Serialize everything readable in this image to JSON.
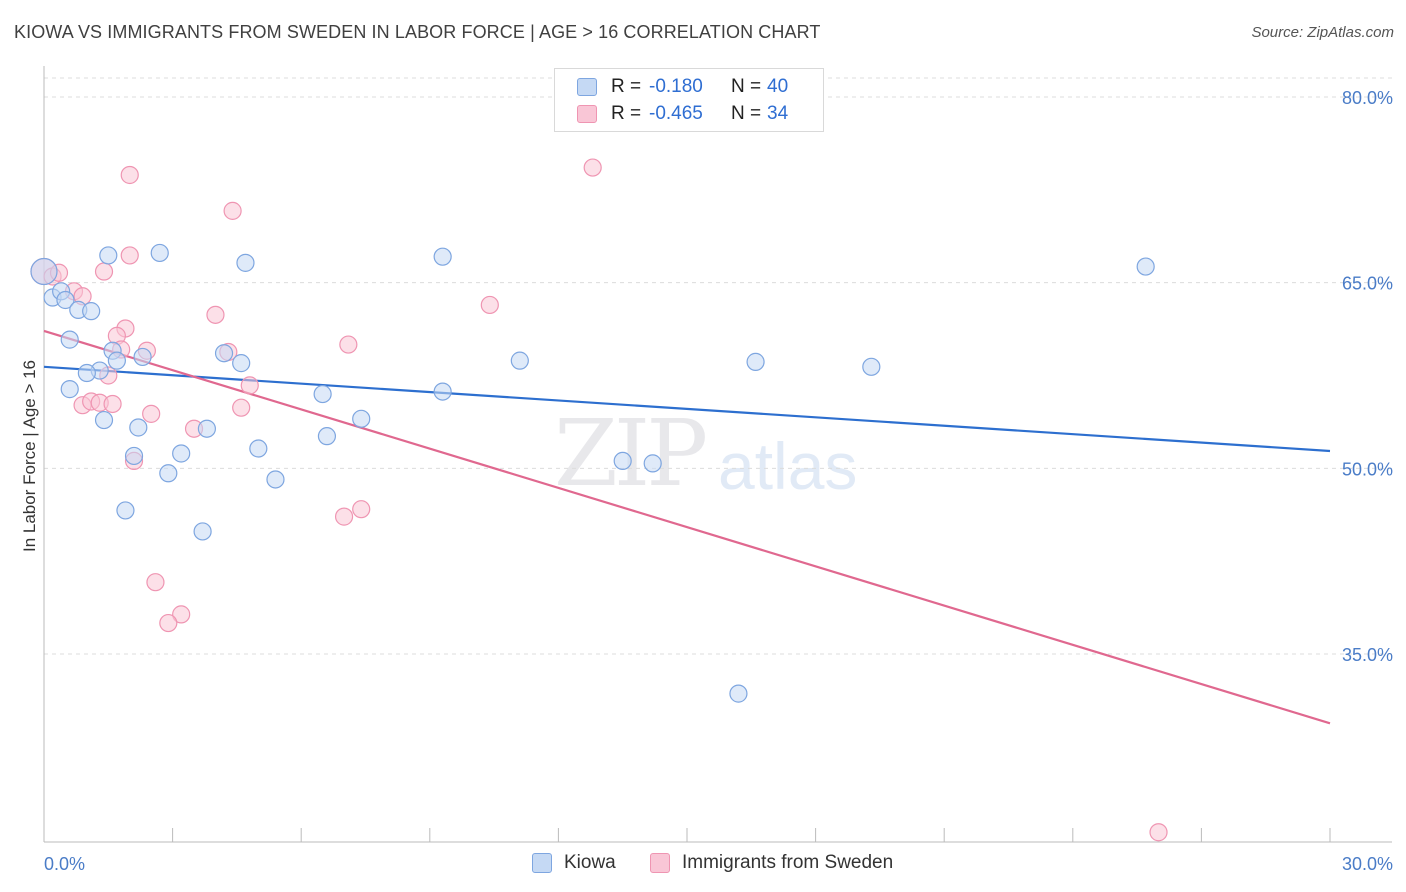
{
  "title": "KIOWA VS IMMIGRANTS FROM SWEDEN IN LABOR FORCE | AGE > 16 CORRELATION CHART",
  "source": "Source: ZipAtlas.com",
  "watermark": {
    "zip": "ZIP",
    "atlas": "atlas"
  },
  "legend": {
    "rows": [
      {
        "r_label": "R =",
        "r_value": "-0.180",
        "n_label": "N =",
        "n_value": "40"
      },
      {
        "r_label": "R =",
        "r_value": "-0.465",
        "n_label": "N =",
        "n_value": "34"
      }
    ]
  },
  "bottom_legend": {
    "kiowa": "Kiowa",
    "sweden": "Immigrants from Sweden"
  },
  "colors": {
    "kiowa_fill": "#c5d9f4",
    "kiowa_stroke": "#7ea6e0",
    "kiowa_line": "#2d6fcf",
    "sweden_fill": "#f9c6d6",
    "sweden_stroke": "#ef95b2",
    "sweden_line": "#e0688f",
    "tick_text": "#4a7cc7"
  },
  "chart_data": {
    "type": "scatter",
    "title": "KIOWA VS IMMIGRANTS FROM SWEDEN IN LABOR FORCE | AGE > 16 CORRELATION CHART",
    "xlabel": "",
    "ylabel": "In Labor Force | Age > 16",
    "xlim": [
      0,
      30
    ],
    "ylim": [
      20,
      83
    ],
    "x_tick_labels": [
      "0.0%",
      "30.0%"
    ],
    "y_ticks": [
      35,
      50,
      65,
      80
    ],
    "y_tick_labels": [
      "35.0%",
      "50.0%",
      "65.0%",
      "80.0%"
    ],
    "grid": true,
    "series": [
      {
        "name": "Kiowa",
        "points": [
          [
            0.0,
            65.9
          ],
          [
            0.2,
            63.8
          ],
          [
            0.4,
            64.3
          ],
          [
            0.5,
            63.6
          ],
          [
            0.8,
            62.8
          ],
          [
            1.1,
            62.7
          ],
          [
            0.6,
            60.4
          ],
          [
            1.5,
            67.2
          ],
          [
            2.7,
            67.4
          ],
          [
            4.7,
            66.6
          ],
          [
            9.3,
            67.1
          ],
          [
            25.7,
            66.3
          ],
          [
            1.6,
            59.5
          ],
          [
            1.7,
            58.7
          ],
          [
            2.3,
            59.0
          ],
          [
            4.2,
            59.3
          ],
          [
            4.6,
            58.5
          ],
          [
            11.1,
            58.7
          ],
          [
            16.6,
            58.6
          ],
          [
            19.3,
            58.2
          ],
          [
            1.3,
            57.9
          ],
          [
            1.0,
            57.7
          ],
          [
            0.6,
            56.4
          ],
          [
            6.5,
            56.0
          ],
          [
            9.3,
            56.2
          ],
          [
            1.4,
            53.9
          ],
          [
            2.2,
            53.3
          ],
          [
            3.8,
            53.2
          ],
          [
            7.4,
            54.0
          ],
          [
            6.6,
            52.6
          ],
          [
            2.1,
            51.0
          ],
          [
            3.2,
            51.2
          ],
          [
            5.0,
            51.6
          ],
          [
            2.9,
            49.6
          ],
          [
            5.4,
            49.1
          ],
          [
            13.5,
            50.6
          ],
          [
            14.2,
            50.4
          ],
          [
            1.9,
            46.6
          ],
          [
            3.7,
            44.9
          ],
          [
            16.2,
            31.8
          ]
        ]
      },
      {
        "name": "Immigrants from Sweden",
        "points": [
          [
            0.0,
            65.9
          ],
          [
            0.2,
            65.5
          ],
          [
            0.35,
            65.8
          ],
          [
            0.7,
            64.3
          ],
          [
            0.9,
            63.9
          ],
          [
            1.4,
            65.9
          ],
          [
            2.0,
            73.7
          ],
          [
            4.4,
            70.8
          ],
          [
            12.8,
            74.3
          ],
          [
            2.0,
            67.2
          ],
          [
            10.4,
            63.2
          ],
          [
            4.0,
            62.4
          ],
          [
            1.9,
            61.3
          ],
          [
            1.7,
            60.7
          ],
          [
            7.1,
            60.0
          ],
          [
            2.4,
            59.5
          ],
          [
            4.3,
            59.4
          ],
          [
            1.8,
            59.6
          ],
          [
            1.5,
            57.5
          ],
          [
            4.8,
            56.7
          ],
          [
            0.9,
            55.1
          ],
          [
            1.1,
            55.4
          ],
          [
            1.3,
            55.3
          ],
          [
            1.6,
            55.2
          ],
          [
            2.5,
            54.4
          ],
          [
            4.6,
            54.9
          ],
          [
            3.5,
            53.2
          ],
          [
            2.1,
            50.6
          ],
          [
            7.0,
            46.1
          ],
          [
            7.4,
            46.7
          ],
          [
            2.6,
            40.8
          ],
          [
            3.2,
            38.2
          ],
          [
            2.9,
            37.5
          ],
          [
            26.0,
            20.6
          ]
        ]
      }
    ],
    "trend_lines": [
      {
        "name": "Kiowa",
        "x": [
          0,
          30
        ],
        "y": [
          58.2,
          51.4
        ]
      },
      {
        "name": "Immigrants from Sweden",
        "x": [
          0,
          30
        ],
        "y": [
          61.1,
          29.4
        ]
      }
    ]
  }
}
